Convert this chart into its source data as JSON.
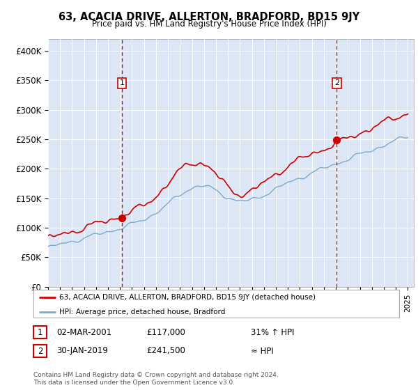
{
  "title": "63, ACACIA DRIVE, ALLERTON, BRADFORD, BD15 9JY",
  "subtitle": "Price paid vs. HM Land Registry's House Price Index (HPI)",
  "ylim": [
    0,
    420000
  ],
  "yticks": [
    0,
    50000,
    100000,
    150000,
    200000,
    250000,
    300000,
    350000,
    400000
  ],
  "ytick_labels": [
    "£0",
    "£50K",
    "£100K",
    "£150K",
    "£200K",
    "£250K",
    "£300K",
    "£350K",
    "£400K"
  ],
  "x_start_year": 1995,
  "x_end_year": 2025,
  "background_color": "#dce6f5",
  "red_line_color": "#cc0000",
  "blue_line_color": "#7aaad0",
  "marker1_year": 2001.17,
  "marker1_price": 117000,
  "marker1_date_label": "02-MAR-2001",
  "marker1_price_label": "£117,000",
  "marker1_hpi_label": "31% ↑ HPI",
  "marker2_year": 2019.08,
  "marker2_price": 241500,
  "marker2_date_label": "30-JAN-2019",
  "marker2_price_label": "£241,500",
  "marker2_hpi_label": "≈ HPI",
  "legend_line1": "63, ACACIA DRIVE, ALLERTON, BRADFORD, BD15 9JY (detached house)",
  "legend_line2": "HPI: Average price, detached house, Bradford",
  "footer": "Contains HM Land Registry data © Crown copyright and database right 2024.\nThis data is licensed under the Open Government Licence v3.0."
}
